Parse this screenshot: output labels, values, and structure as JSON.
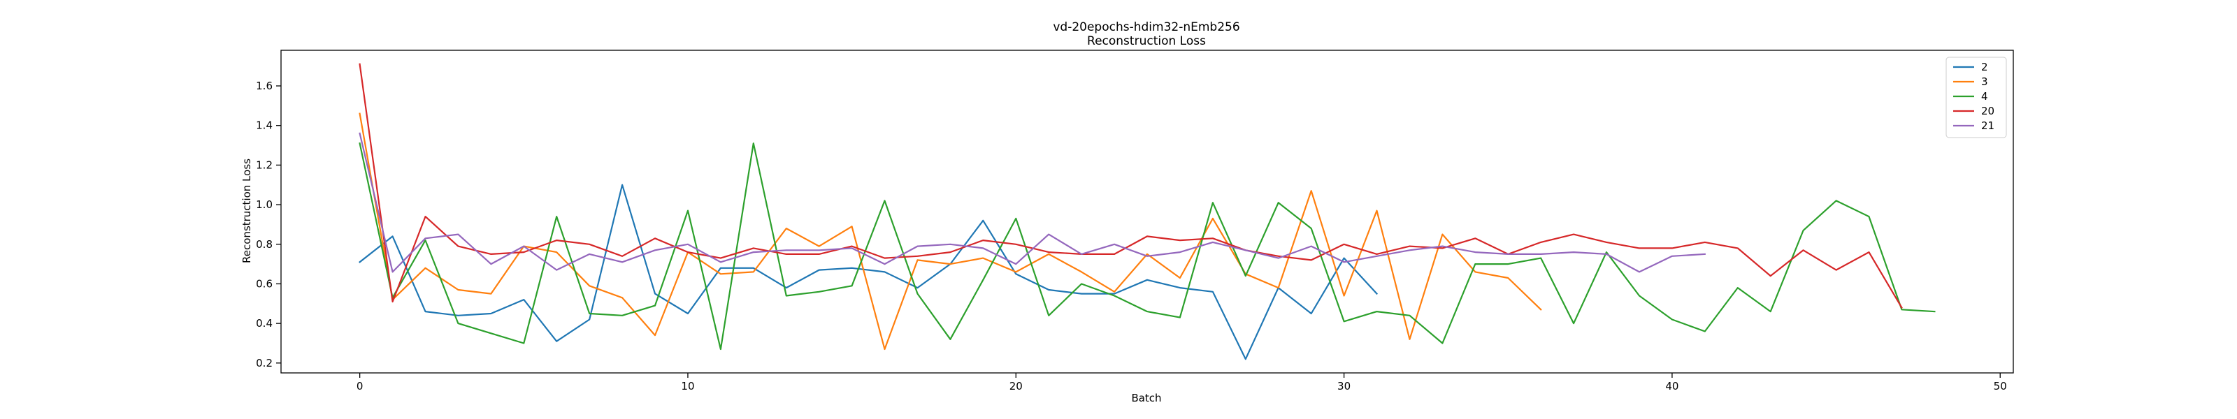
{
  "chart_data": {
    "type": "line",
    "title": "vd-20epochs-hdim32-nEmb256",
    "subtitle": "Reconstruction Loss",
    "xlabel": "Batch",
    "ylabel": "Reconstruction Loss",
    "xlim": [
      -2.4,
      50.4
    ],
    "ylim": [
      0.15,
      1.78
    ],
    "xticks": [
      0,
      10,
      20,
      30,
      40,
      50
    ],
    "yticks": [
      0.2,
      0.4,
      0.6,
      0.8,
      1.0,
      1.2,
      1.4,
      1.6
    ],
    "ytick_labels": [
      "0.2",
      "0.4",
      "0.6",
      "0.8",
      "1.0",
      "1.2",
      "1.4",
      "1.6"
    ],
    "grid": false,
    "legend_position": "top-right",
    "series": [
      {
        "name": "2",
        "color": "#1f77b4",
        "values": [
          0.71,
          0.84,
          0.46,
          0.44,
          0.45,
          0.52,
          0.31,
          0.42,
          1.1,
          0.55,
          0.45,
          0.68,
          0.68,
          0.58,
          0.67,
          0.68,
          0.66,
          0.58,
          0.7,
          0.92,
          0.65,
          0.57,
          0.55,
          0.55,
          0.62,
          0.58,
          0.56,
          0.22,
          0.58,
          0.45,
          0.73,
          0.55
        ]
      },
      {
        "name": "3",
        "color": "#ff7f0e",
        "values": [
          1.46,
          0.52,
          0.68,
          0.57,
          0.55,
          0.79,
          0.76,
          0.59,
          0.53,
          0.34,
          0.76,
          0.65,
          0.66,
          0.88,
          0.79,
          0.89,
          0.27,
          0.72,
          0.7,
          0.73,
          0.66,
          0.75,
          0.66,
          0.56,
          0.75,
          0.63,
          0.93,
          0.65,
          0.58,
          1.07,
          0.54,
          0.97,
          0.32,
          0.85,
          0.66,
          0.63,
          0.47
        ]
      },
      {
        "name": "4",
        "color": "#2ca02c",
        "values": [
          1.31,
          0.53,
          0.82,
          0.4,
          0.35,
          0.3,
          0.94,
          0.45,
          0.44,
          0.49,
          0.97,
          0.27,
          1.31,
          0.54,
          0.56,
          0.59,
          1.02,
          0.55,
          0.32,
          0.62,
          0.93,
          0.44,
          0.6,
          0.54,
          0.46,
          0.43,
          1.01,
          0.64,
          1.01,
          0.88,
          0.41,
          0.46,
          0.44,
          0.3,
          0.7,
          0.7,
          0.73,
          0.4,
          0.76,
          0.54,
          0.42,
          0.36,
          0.58,
          0.46,
          0.87,
          1.02,
          0.94,
          0.47,
          0.46
        ]
      },
      {
        "name": "20",
        "color": "#d62728",
        "values": [
          1.71,
          0.51,
          0.94,
          0.79,
          0.75,
          0.76,
          0.82,
          0.8,
          0.74,
          0.83,
          0.76,
          0.73,
          0.78,
          0.75,
          0.75,
          0.79,
          0.73,
          0.74,
          0.76,
          0.82,
          0.8,
          0.76,
          0.75,
          0.75,
          0.84,
          0.82,
          0.83,
          0.77,
          0.74,
          0.72,
          0.8,
          0.75,
          0.79,
          0.78,
          0.83,
          0.75,
          0.81,
          0.85,
          0.81,
          0.78,
          0.78,
          0.81,
          0.78,
          0.64,
          0.77,
          0.67,
          0.76,
          0.48
        ]
      },
      {
        "name": "21",
        "color": "#9467bd",
        "values": [
          1.36,
          0.66,
          0.83,
          0.85,
          0.7,
          0.79,
          0.67,
          0.75,
          0.71,
          0.77,
          0.8,
          0.71,
          0.76,
          0.77,
          0.77,
          0.78,
          0.7,
          0.79,
          0.8,
          0.78,
          0.7,
          0.85,
          0.75,
          0.8,
          0.74,
          0.76,
          0.81,
          0.77,
          0.73,
          0.79,
          0.71,
          0.74,
          0.77,
          0.79,
          0.76,
          0.75,
          0.75,
          0.76,
          0.75,
          0.66,
          0.74,
          0.75
        ]
      }
    ]
  }
}
